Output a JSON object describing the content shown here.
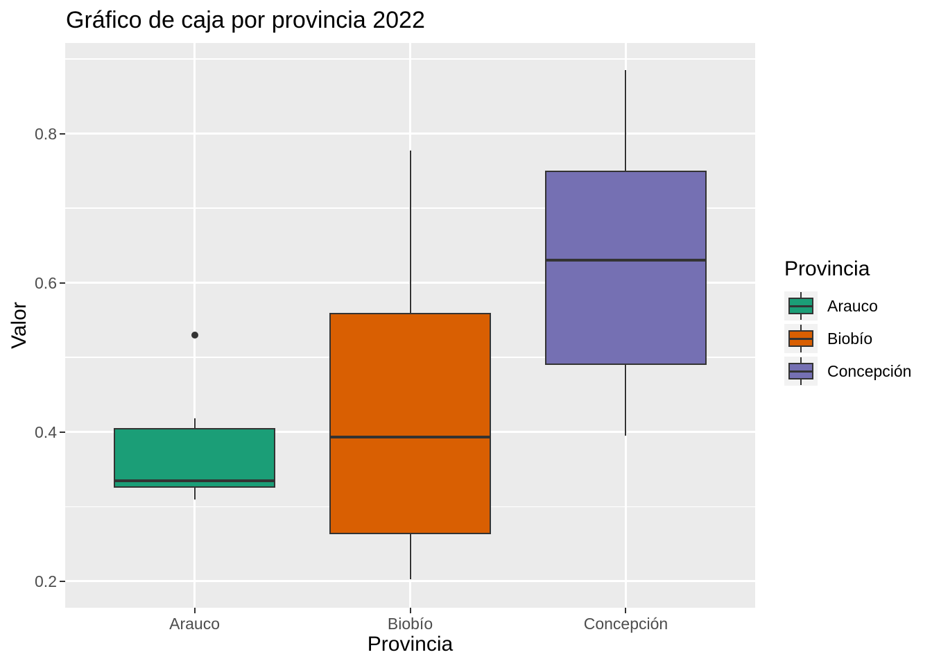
{
  "colors": {
    "page_bg": "#FFFFFF",
    "panel_bg": "#EBEBEB",
    "gridline": "#FFFFFF",
    "box_stroke": "#333333",
    "tick_mark": "#333333",
    "axis_text": "#4D4D4D",
    "title_text": "#000000",
    "legend_key_bg": "#F2F2F2"
  },
  "chart_data": {
    "type": "boxplot",
    "title": "Gráfico de caja por provincia 2022",
    "xlabel": "Provincia",
    "ylabel": "Valor",
    "categories": [
      "Arauco",
      "Biobío",
      "Concepción"
    ],
    "series": [
      {
        "name": "Arauco",
        "color": "#1B9E77",
        "whisker_low": 0.31,
        "q1": 0.325,
        "median": 0.335,
        "q3": 0.405,
        "whisker_high": 0.418,
        "outliers": [
          0.53
        ]
      },
      {
        "name": "Biobío",
        "color": "#D95F02",
        "whisker_low": 0.203,
        "q1": 0.263,
        "median": 0.393,
        "q3": 0.56,
        "whisker_high": 0.777,
        "outliers": []
      },
      {
        "name": "Concepción",
        "color": "#7570B3",
        "whisker_low": 0.395,
        "q1": 0.49,
        "median": 0.63,
        "q3": 0.75,
        "whisker_high": 0.885,
        "outliers": []
      }
    ],
    "y_ticks": [
      0.2,
      0.4,
      0.6,
      0.8
    ],
    "y_tick_labels": [
      "0.2",
      "0.4",
      "0.6",
      "0.8"
    ],
    "y_minor_gridlines": [
      0.3,
      0.5,
      0.7,
      0.9
    ],
    "ylim": [
      0.1645,
      0.9215
    ],
    "grid": true,
    "legend": {
      "title": "Provincia",
      "position": "right",
      "entries": [
        "Arauco",
        "Biobío",
        "Concepción"
      ]
    }
  }
}
